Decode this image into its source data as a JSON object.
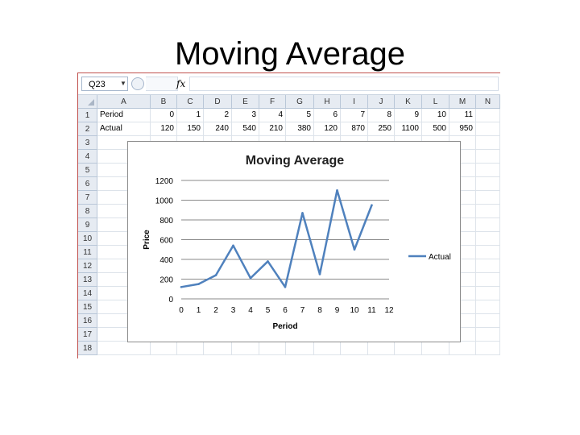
{
  "slide": {
    "title": "Moving Average"
  },
  "formula_bar": {
    "name_box": "Q23",
    "fx": "fx",
    "value": ""
  },
  "columns": [
    "A",
    "B",
    "C",
    "D",
    "E",
    "F",
    "G",
    "H",
    "I",
    "J",
    "K",
    "L",
    "M",
    "N"
  ],
  "rows": [
    "1",
    "2",
    "3",
    "4",
    "5",
    "6",
    "7",
    "8",
    "9",
    "10",
    "11",
    "12",
    "13",
    "14",
    "15",
    "16",
    "17",
    "18"
  ],
  "table": {
    "row1": {
      "label": "Period",
      "values": [
        "0",
        "1",
        "2",
        "3",
        "4",
        "5",
        "6",
        "7",
        "8",
        "9",
        "10",
        "11"
      ]
    },
    "row2": {
      "label": "Actual",
      "values": [
        "120",
        "150",
        "240",
        "540",
        "210",
        "380",
        "120",
        "870",
        "250",
        "1100",
        "500",
        "950"
      ]
    }
  },
  "chart_data": {
    "type": "line",
    "title": "Moving Average",
    "xlabel": "Period",
    "ylabel": "Price",
    "x": [
      0,
      1,
      2,
      3,
      4,
      5,
      6,
      7,
      8,
      9,
      10,
      11
    ],
    "series": [
      {
        "name": "Actual",
        "color": "#4f81bd",
        "values": [
          120,
          150,
          240,
          540,
          210,
          380,
          120,
          870,
          250,
          1100,
          500,
          950
        ]
      }
    ],
    "xlim": [
      0,
      12
    ],
    "ylim": [
      0,
      1200
    ],
    "xticks": [
      "0",
      "1",
      "2",
      "3",
      "4",
      "5",
      "6",
      "7",
      "8",
      "9",
      "10",
      "11",
      "12"
    ],
    "yticks": [
      "0",
      "200",
      "400",
      "600",
      "800",
      "1000",
      "1200"
    ],
    "grid": true,
    "legend": "right"
  }
}
